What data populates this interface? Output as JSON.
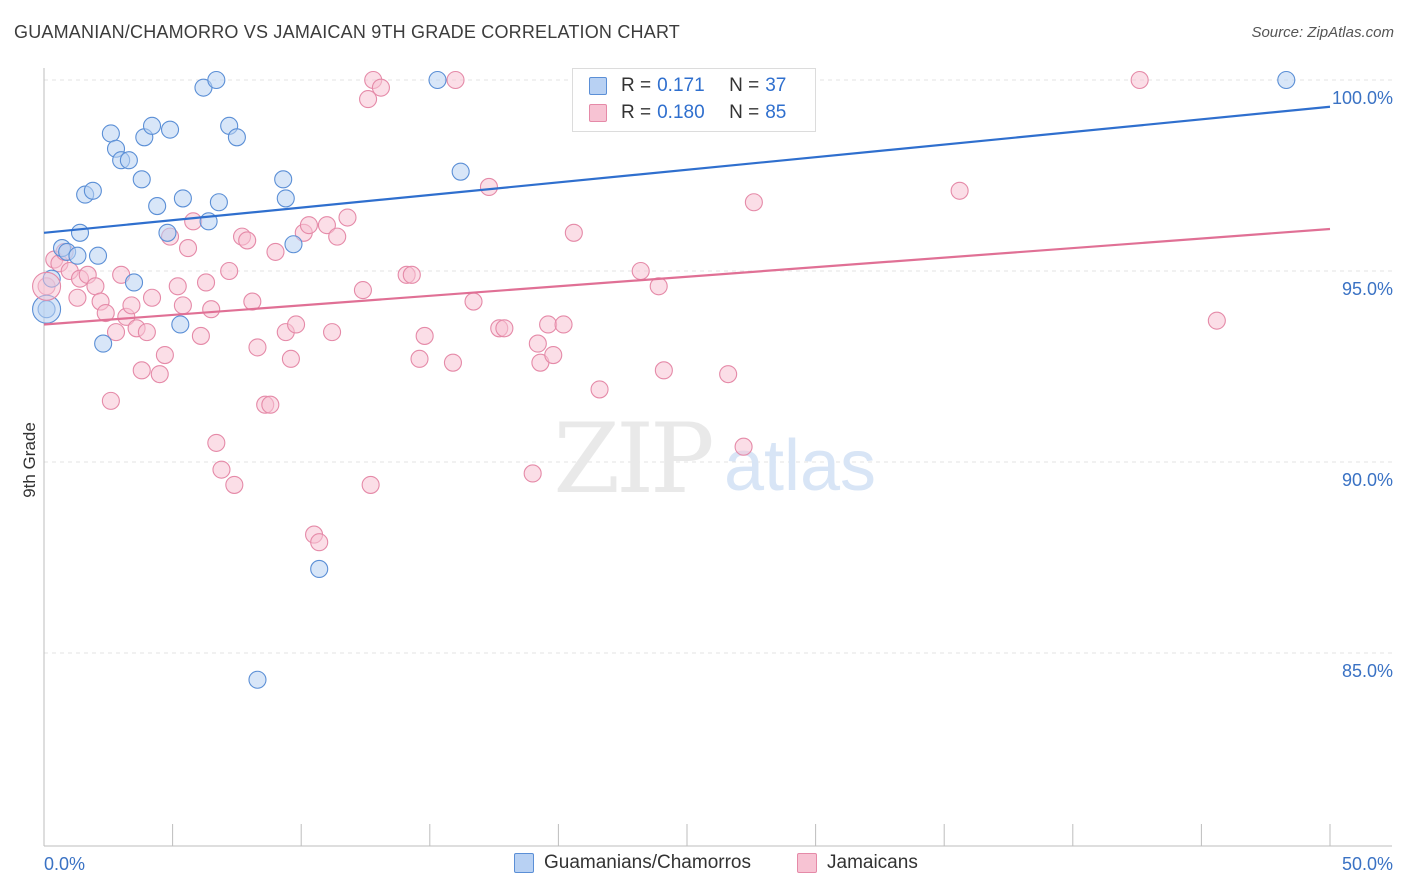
{
  "title": "GUAMANIAN/CHAMORRO VS JAMAICAN 9TH GRADE CORRELATION CHART",
  "source": "Source: ZipAtlas.com",
  "watermark": {
    "zip": "ZIP",
    "atlas": "atlas"
  },
  "legend": {
    "r_label": "R =",
    "n_label": "N =",
    "rows": [
      {
        "r": "0.171",
        "n": "37"
      },
      {
        "r": "0.180",
        "n": "85"
      }
    ]
  },
  "bottom_legend": [
    "Guamanians/Chamorros",
    "Jamaicans"
  ],
  "colors": {
    "blue_fill": "#b8d1f3",
    "blue_stroke": "#5b8fd6",
    "blue_line": "#2f6fce",
    "pink_fill": "#f7c3d3",
    "pink_stroke": "#e58aa8",
    "pink_line": "#e07095",
    "tick_label": "#3a72c4",
    "grid": "#e3e3e3"
  },
  "chart_data": {
    "type": "scatter",
    "title": "GUAMANIAN/CHAMORRO VS JAMAICAN 9TH GRADE CORRELATION CHART",
    "xlabel": "",
    "ylabel": "9th Grade",
    "xlim": [
      0,
      50
    ],
    "ylim": [
      80.5,
      100.8
    ],
    "x_tick_labels": [
      "0.0%",
      "50.0%"
    ],
    "y_ticks": [
      85,
      90,
      95,
      100
    ],
    "y_tick_labels": [
      "85.0%",
      "90.0%",
      "95.0%",
      "100.0%"
    ],
    "grid": true,
    "legend_position": "top-center",
    "series": [
      {
        "name": "Guamanians/Chamorros",
        "r": 0.171,
        "n": 37,
        "trend": {
          "x": [
            0,
            50
          ],
          "y": [
            96.0,
            99.3
          ]
        },
        "points": [
          [
            0.1,
            94.0
          ],
          [
            0.3,
            94.8
          ],
          [
            0.7,
            95.6
          ],
          [
            0.9,
            95.5
          ],
          [
            1.3,
            95.4
          ],
          [
            1.4,
            96.0
          ],
          [
            1.6,
            97.0
          ],
          [
            1.9,
            97.1
          ],
          [
            2.1,
            95.4
          ],
          [
            2.3,
            93.1
          ],
          [
            2.6,
            98.6
          ],
          [
            2.8,
            98.2
          ],
          [
            3.0,
            97.9
          ],
          [
            3.3,
            97.9
          ],
          [
            3.5,
            94.7
          ],
          [
            3.8,
            97.4
          ],
          [
            3.9,
            98.5
          ],
          [
            4.2,
            98.8
          ],
          [
            4.4,
            96.7
          ],
          [
            4.8,
            96.0
          ],
          [
            4.9,
            98.7
          ],
          [
            5.3,
            93.6
          ],
          [
            5.4,
            96.9
          ],
          [
            6.2,
            99.8
          ],
          [
            6.4,
            96.3
          ],
          [
            6.7,
            100.0
          ],
          [
            6.8,
            96.8
          ],
          [
            7.2,
            98.8
          ],
          [
            7.5,
            98.5
          ],
          [
            8.3,
            84.3
          ],
          [
            9.3,
            97.4
          ],
          [
            9.4,
            96.9
          ],
          [
            9.7,
            95.7
          ],
          [
            10.7,
            87.2
          ],
          [
            15.3,
            100.0
          ],
          [
            16.2,
            97.6
          ],
          [
            48.3,
            100.0
          ]
        ]
      },
      {
        "name": "Jamaicans",
        "r": 0.18,
        "n": 85,
        "trend": {
          "x": [
            0,
            50
          ],
          "y": [
            93.6,
            96.1
          ]
        },
        "points": [
          [
            0.1,
            94.6
          ],
          [
            0.4,
            95.3
          ],
          [
            0.6,
            95.2
          ],
          [
            0.8,
            95.5
          ],
          [
            1.0,
            95.0
          ],
          [
            1.3,
            94.3
          ],
          [
            1.4,
            94.8
          ],
          [
            1.7,
            94.9
          ],
          [
            2.0,
            94.6
          ],
          [
            2.2,
            94.2
          ],
          [
            2.4,
            93.9
          ],
          [
            2.6,
            91.6
          ],
          [
            2.8,
            93.4
          ],
          [
            3.0,
            94.9
          ],
          [
            3.2,
            93.8
          ],
          [
            3.4,
            94.1
          ],
          [
            3.6,
            93.5
          ],
          [
            3.8,
            92.4
          ],
          [
            4.0,
            93.4
          ],
          [
            4.2,
            94.3
          ],
          [
            4.5,
            92.3
          ],
          [
            4.7,
            92.8
          ],
          [
            4.9,
            95.9
          ],
          [
            5.2,
            94.6
          ],
          [
            5.4,
            94.1
          ],
          [
            5.6,
            95.6
          ],
          [
            5.8,
            96.3
          ],
          [
            6.1,
            93.3
          ],
          [
            6.3,
            94.7
          ],
          [
            6.5,
            94.0
          ],
          [
            6.7,
            90.5
          ],
          [
            6.9,
            89.8
          ],
          [
            7.2,
            95.0
          ],
          [
            7.4,
            89.4
          ],
          [
            7.7,
            95.9
          ],
          [
            7.9,
            95.8
          ],
          [
            8.1,
            94.2
          ],
          [
            8.3,
            93.0
          ],
          [
            8.6,
            91.5
          ],
          [
            8.8,
            91.5
          ],
          [
            9.0,
            95.5
          ],
          [
            9.4,
            93.4
          ],
          [
            9.6,
            92.7
          ],
          [
            9.8,
            93.6
          ],
          [
            10.1,
            96.0
          ],
          [
            10.3,
            96.2
          ],
          [
            10.5,
            88.1
          ],
          [
            10.7,
            87.9
          ],
          [
            11.0,
            96.2
          ],
          [
            11.2,
            93.4
          ],
          [
            11.4,
            95.9
          ],
          [
            11.8,
            96.4
          ],
          [
            12.4,
            94.5
          ],
          [
            12.6,
            99.5
          ],
          [
            12.7,
            89.4
          ],
          [
            12.8,
            100.0
          ],
          [
            13.1,
            99.8
          ],
          [
            14.1,
            94.9
          ],
          [
            14.3,
            94.9
          ],
          [
            14.6,
            92.7
          ],
          [
            14.8,
            93.3
          ],
          [
            15.9,
            92.6
          ],
          [
            16.0,
            100.0
          ],
          [
            16.7,
            94.2
          ],
          [
            17.3,
            97.2
          ],
          [
            17.7,
            93.5
          ],
          [
            17.9,
            93.5
          ],
          [
            19.0,
            89.7
          ],
          [
            19.2,
            93.1
          ],
          [
            19.3,
            92.6
          ],
          [
            19.6,
            93.6
          ],
          [
            19.8,
            92.8
          ],
          [
            20.2,
            93.6
          ],
          [
            20.6,
            96.0
          ],
          [
            21.6,
            91.9
          ],
          [
            23.2,
            95.0
          ],
          [
            23.9,
            94.6
          ],
          [
            24.1,
            92.4
          ],
          [
            26.6,
            92.3
          ],
          [
            27.2,
            90.4
          ],
          [
            27.5,
            100.0
          ],
          [
            27.6,
            96.8
          ],
          [
            35.6,
            97.1
          ],
          [
            42.6,
            100.0
          ],
          [
            45.6,
            93.7
          ]
        ]
      }
    ]
  }
}
